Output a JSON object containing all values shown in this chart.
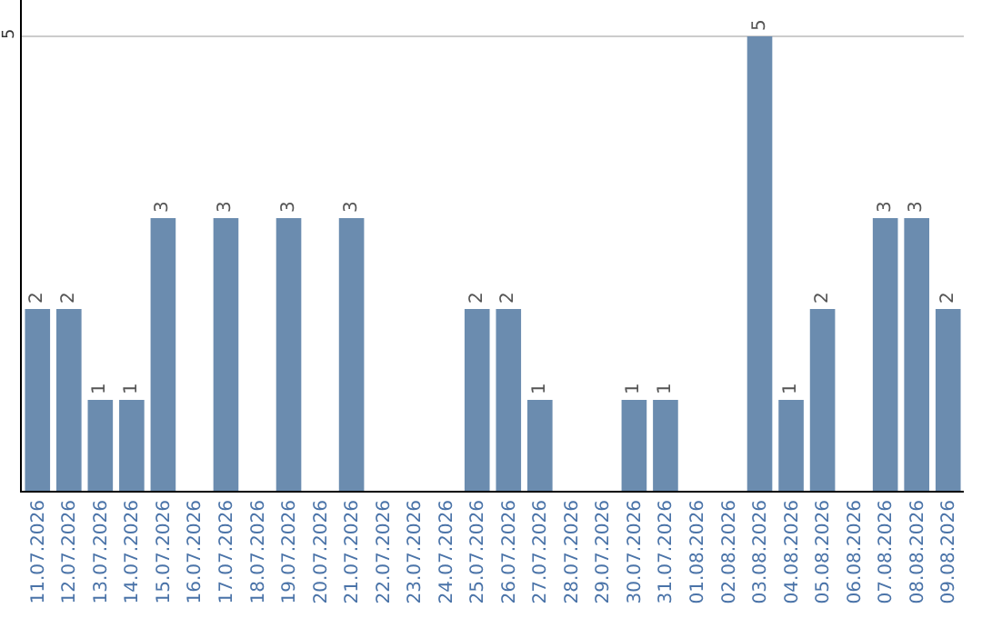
{
  "chart_data": {
    "type": "bar",
    "categories": [
      "11.07.2026",
      "12.07.2026",
      "13.07.2026",
      "14.07.2026",
      "15.07.2026",
      "16.07.2026",
      "17.07.2026",
      "18.07.2026",
      "19.07.2026",
      "20.07.2026",
      "21.07.2026",
      "22.07.2026",
      "23.07.2026",
      "24.07.2026",
      "25.07.2026",
      "26.07.2026",
      "27.07.2026",
      "28.07.2026",
      "29.07.2026",
      "30.07.2026",
      "31.07.2026",
      "01.08.2026",
      "02.08.2026",
      "03.08.2026",
      "04.08.2026",
      "05.08.2026",
      "06.08.2026",
      "07.08.2026",
      "08.08.2026",
      "09.08.2026"
    ],
    "values": [
      2,
      2,
      1,
      1,
      3,
      0,
      3,
      0,
      3,
      0,
      3,
      0,
      0,
      0,
      2,
      2,
      1,
      0,
      0,
      1,
      1,
      0,
      0,
      5,
      1,
      2,
      0,
      3,
      3,
      2
    ],
    "value_labels": [
      "2",
      "2",
      "1",
      "1",
      "3",
      null,
      "3",
      null,
      "3",
      null,
      "3",
      null,
      null,
      null,
      "2",
      "2",
      "1",
      null,
      null,
      "1",
      "1",
      null,
      null,
      "5",
      "1",
      "2",
      null,
      "3",
      "3",
      "2"
    ],
    "color": "#6b8caf",
    "ylim": [
      0,
      5.4
    ],
    "yticks": [
      5
    ],
    "grid": "y",
    "legend": false
  }
}
